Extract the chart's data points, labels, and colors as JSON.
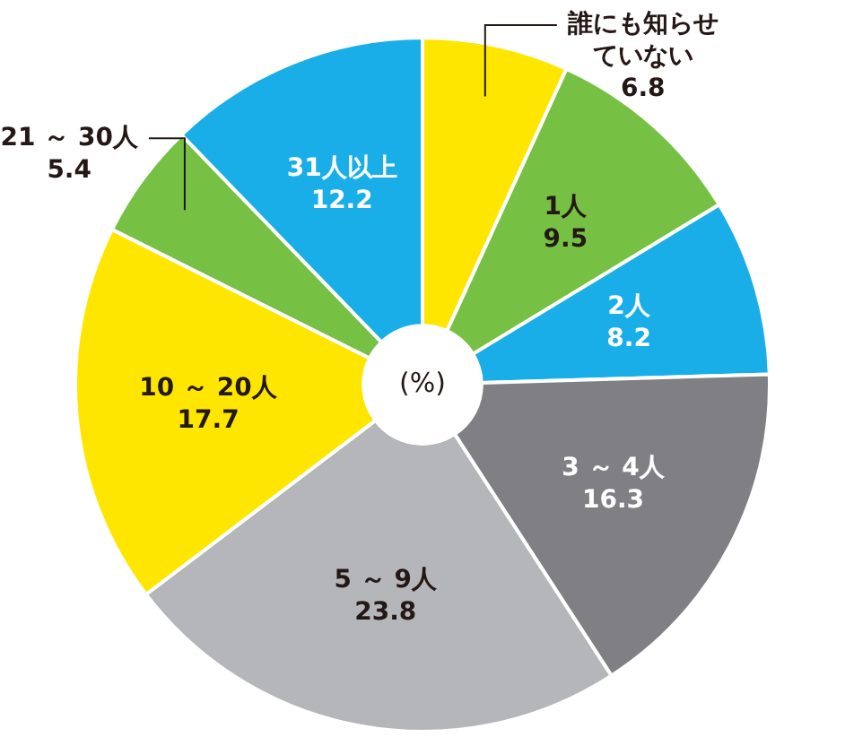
{
  "chart_data": {
    "type": "donut",
    "categories": [
      "誰にも知らせていない",
      "1人",
      "2人",
      "3 ～ 4人",
      "5 ～ 9人",
      "10 ～ 20人",
      "21 ～ 30人",
      "31人以上"
    ],
    "values": [
      6.8,
      9.5,
      8.2,
      16.3,
      23.8,
      17.7,
      5.4,
      12.2
    ],
    "colors": [
      "#ffe600",
      "#76c043",
      "#1aaee8",
      "#807f83",
      "#b5b6b9",
      "#ffe600",
      "#76c043",
      "#1aaee8"
    ],
    "data_labels": true,
    "legend": false,
    "annotations": [
      "(%)"
    ]
  }
}
